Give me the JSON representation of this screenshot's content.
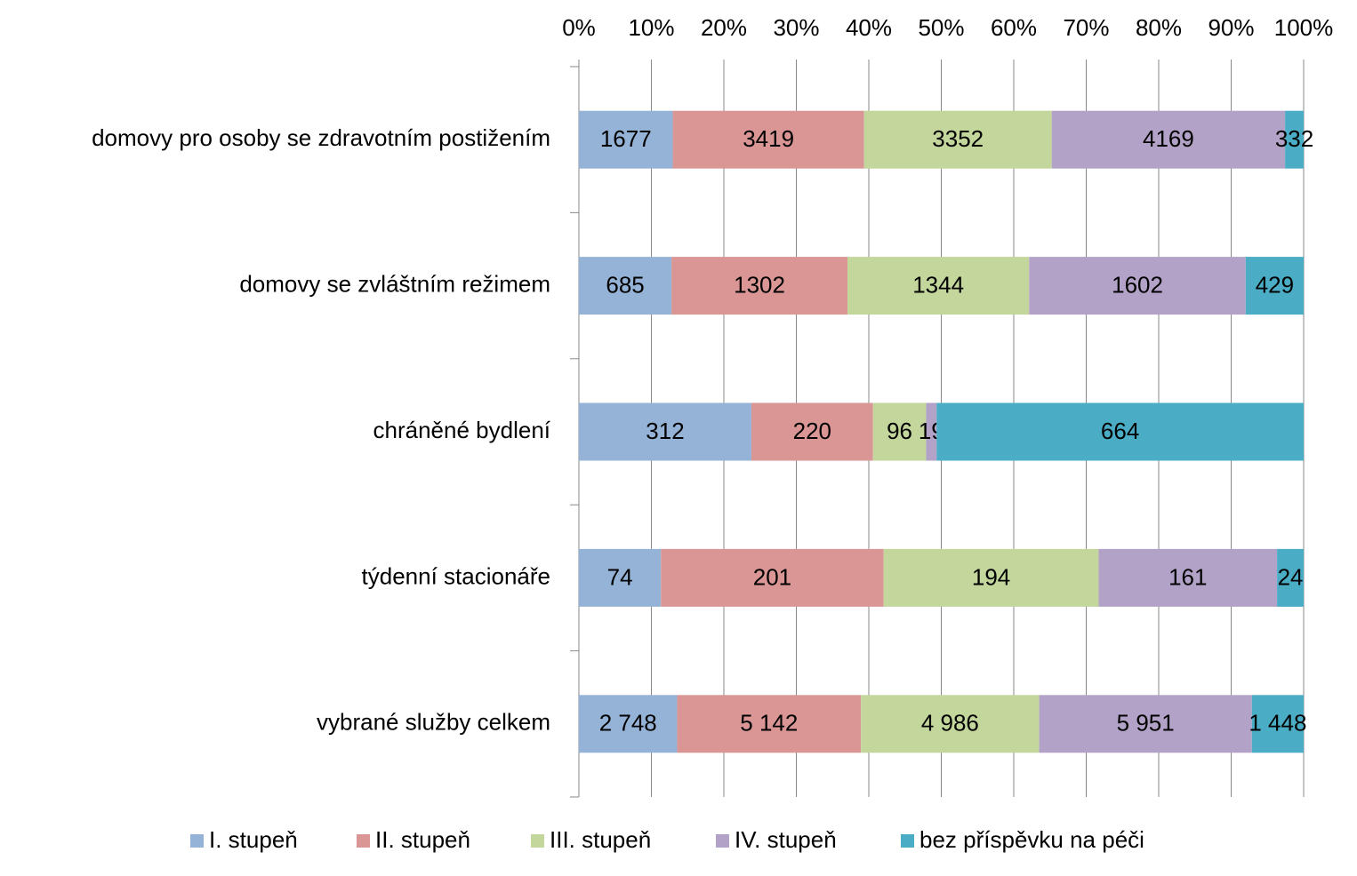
{
  "chart_data": {
    "type": "bar",
    "orientation": "horizontal",
    "stacking": "percent",
    "categories": [
      "domovy pro osoby se zdravotním postižením",
      "domovy se zvláštním režimem",
      "chráněné bydlení",
      "týdenní stacionáře",
      "vybrané služby celkem"
    ],
    "series": [
      {
        "name": "I. stupeň",
        "color": "#95b3d7",
        "values": [
          1677,
          685,
          312,
          74,
          2748
        ],
        "value_labels": [
          null,
          null,
          null,
          null,
          "2 748"
        ]
      },
      {
        "name": "II. stupeň",
        "color": "#d99694",
        "values": [
          3419,
          1302,
          220,
          201,
          5142
        ],
        "value_labels": [
          null,
          null,
          null,
          null,
          "5 142"
        ]
      },
      {
        "name": "III. stupeň",
        "color": "#c3d69b",
        "values": [
          3352,
          1344,
          96,
          194,
          4986
        ],
        "value_labels": [
          null,
          null,
          null,
          null,
          "4 986"
        ]
      },
      {
        "name": "IV. stupeň",
        "color": "#b3a2c7",
        "values": [
          4169,
          1602,
          19,
          161,
          5951
        ],
        "value_labels": [
          null,
          null,
          null,
          null,
          "5 951"
        ]
      },
      {
        "name": "bez příspěvku na péči",
        "color": "#4bacc6",
        "values": [
          332,
          429,
          664,
          24,
          1448
        ],
        "value_labels": [
          null,
          null,
          null,
          null,
          "1 448"
        ]
      }
    ],
    "xlim": [
      0,
      100
    ],
    "xticks": [
      {
        "value": 0,
        "label": "0%"
      },
      {
        "value": 10,
        "label": "10%"
      },
      {
        "value": 20,
        "label": "20%"
      },
      {
        "value": 30,
        "label": "30%"
      },
      {
        "value": 40,
        "label": "40%"
      },
      {
        "value": 50,
        "label": "50%"
      },
      {
        "value": 60,
        "label": "60%"
      },
      {
        "value": 70,
        "label": "70%"
      },
      {
        "value": 80,
        "label": "80%"
      },
      {
        "value": 90,
        "label": "90%"
      },
      {
        "value": 100,
        "label": "100%"
      }
    ],
    "grid": true,
    "legend": "bottom"
  }
}
